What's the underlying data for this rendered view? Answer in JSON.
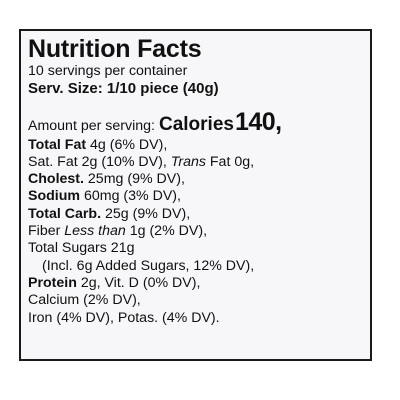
{
  "label": {
    "title": "Nutrition Facts",
    "servings": "10 servings per container",
    "serving_size": "Serv. Size: 1/10 piece (40g)",
    "amount_per_serving": "Amount per serving:",
    "calories_label": "Calories",
    "calories_value": "140,",
    "rows": {
      "total_fat_name": "Total Fat",
      "total_fat_value": " 4g (6% DV),",
      "sat_fat": "Sat. Fat 2g (10% DV), ",
      "trans_fat_name": "Trans",
      "trans_fat_value": " Fat 0g,",
      "cholest_name": "Cholest.",
      "cholest_value": " 25mg (9% DV),",
      "sodium_name": "Sodium",
      "sodium_value": " 60mg (3% DV),",
      "total_carb_name": "Total Carb.",
      "total_carb_value": " 25g (9% DV),",
      "fiber_prefix": "Fiber ",
      "fiber_less": "Less than",
      "fiber_value": " 1g (2% DV),",
      "total_sugars": "Total Sugars 21g",
      "added_sugars": "(Incl. 6g Added Sugars, 12% DV),",
      "protein_name": "Protein",
      "protein_value": " 2g, Vit. D (0% DV),",
      "calcium": "Calcium (2% DV),",
      "iron_potas": "Iron (4% DV), Potas. (4% DV)."
    }
  }
}
